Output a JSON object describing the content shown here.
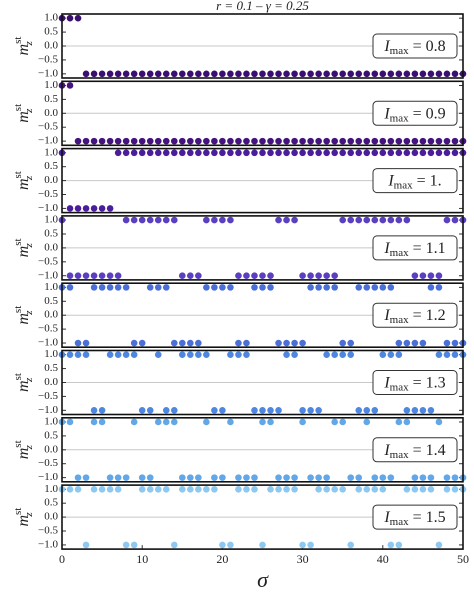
{
  "chart_data": [
    {
      "type": "scatter",
      "title": "r = 0.1  –  γ = 0.25",
      "ylabel": [
        "m",
        "z",
        "st"
      ],
      "annotation": [
        "I",
        "max",
        " = 0.8"
      ],
      "color": "#3b0f6f",
      "xlim": [
        0,
        50
      ],
      "ylim": [
        -1.15,
        1.15
      ],
      "gridlines": [
        0
      ],
      "yticks": [
        {
          "value": 1,
          "label": "1.0"
        },
        0.5,
        {
          "value": 0,
          "label": "0.0"
        },
        {
          "value": -0.5,
          "label": "−0.5"
        },
        {
          "value": -1,
          "label": "−1.0"
        }
      ],
      "x": [
        0,
        1,
        2,
        3,
        4,
        5,
        6,
        7,
        8,
        9,
        10,
        11,
        12,
        13,
        14,
        15,
        16,
        17,
        18,
        19,
        20,
        21,
        22,
        23,
        24,
        25,
        26,
        27,
        28,
        29,
        30,
        31,
        32,
        33,
        34,
        35,
        36,
        37,
        38,
        39,
        40,
        41,
        42,
        43,
        44,
        45,
        46,
        47,
        48,
        49,
        50
      ],
      "values": [
        1,
        1,
        1,
        -1,
        -1,
        -1,
        -1,
        -1,
        -1,
        -1,
        -1,
        -1,
        -1,
        -1,
        -1,
        -1,
        -1,
        -1,
        -1,
        -1,
        -1,
        -1,
        -1,
        -1,
        -1,
        -1,
        -1,
        -1,
        -1,
        -1,
        -1,
        -1,
        -1,
        -1,
        -1,
        -1,
        -1,
        -1,
        -1,
        -1,
        -1,
        -1,
        -1,
        -1,
        -1,
        -1,
        -1,
        -1,
        -1,
        -1,
        -1
      ]
    },
    {
      "type": "scatter",
      "ylabel": [
        "m",
        "z",
        "st"
      ],
      "annotation": [
        "I",
        "max",
        " = 0.9"
      ],
      "color": "#45137f",
      "xlim": [
        0,
        50
      ],
      "ylim": [
        -1.15,
        1.15
      ],
      "gridlines": [
        0
      ],
      "yticks": [
        {
          "value": 1,
          "label": "1.0"
        },
        0.5,
        {
          "value": 0,
          "label": "0.0"
        },
        {
          "value": -0.5,
          "label": "−0.5"
        },
        {
          "value": -1,
          "label": "−1.0"
        }
      ],
      "x": [
        0,
        1,
        2,
        3,
        4,
        5,
        6,
        7,
        8,
        9,
        10,
        11,
        12,
        13,
        14,
        15,
        16,
        17,
        18,
        19,
        20,
        21,
        22,
        23,
        24,
        25,
        26,
        27,
        28,
        29,
        30,
        31,
        32,
        33,
        34,
        35,
        36,
        37,
        38,
        39,
        40,
        41,
        42,
        43,
        44,
        45,
        46,
        47,
        48,
        49,
        50
      ],
      "values": [
        1,
        1,
        -1,
        -1,
        -1,
        -1,
        -1,
        -1,
        -1,
        -1,
        -1,
        -1,
        -1,
        -1,
        -1,
        -1,
        -1,
        -1,
        -1,
        -1,
        -1,
        -1,
        -1,
        -1,
        -1,
        -1,
        -1,
        -1,
        -1,
        -1,
        -1,
        -1,
        -1,
        -1,
        -1,
        -1,
        -1,
        -1,
        -1,
        -1,
        -1,
        -1,
        -1,
        -1,
        -1,
        -1,
        -1,
        -1,
        -1,
        -1,
        -1
      ]
    },
    {
      "type": "scatter",
      "ylabel": [
        "m",
        "z",
        "st"
      ],
      "annotation": [
        "I",
        "max",
        " = 1."
      ],
      "color": "#4c1d9a",
      "xlim": [
        0,
        50
      ],
      "ylim": [
        -1.15,
        1.15
      ],
      "gridlines": [
        0
      ],
      "yticks": [
        {
          "value": 1,
          "label": "1.0"
        },
        0.5,
        {
          "value": 0,
          "label": "0.0"
        },
        {
          "value": -0.5,
          "label": "−0.5"
        },
        {
          "value": -1,
          "label": "−1.0"
        }
      ],
      "x": [
        0,
        1,
        2,
        3,
        4,
        5,
        6,
        7,
        8,
        9,
        10,
        11,
        12,
        13,
        14,
        15,
        16,
        17,
        18,
        19,
        20,
        21,
        22,
        23,
        24,
        25,
        26,
        27,
        28,
        29,
        30,
        31,
        32,
        33,
        34,
        35,
        36,
        37,
        38,
        39,
        40,
        41,
        42,
        43,
        44,
        45,
        46,
        47,
        48,
        49,
        50
      ],
      "values": [
        1,
        -1,
        -1,
        -1,
        -1,
        -1,
        -1,
        1,
        1,
        1,
        1,
        1,
        1,
        1,
        1,
        1,
        1,
        1,
        1,
        1,
        1,
        1,
        1,
        1,
        1,
        1,
        1,
        1,
        1,
        1,
        1,
        1,
        1,
        1,
        1,
        1,
        1,
        1,
        1,
        1,
        1,
        1,
        1,
        1,
        1,
        1,
        1,
        1,
        1,
        1,
        1
      ]
    },
    {
      "type": "scatter",
      "ylabel": [
        "m",
        "z",
        "st"
      ],
      "annotation": [
        "I",
        "max",
        " = 1.1"
      ],
      "color": "#5a3fc0",
      "xlim": [
        0,
        50
      ],
      "ylim": [
        -1.15,
        1.15
      ],
      "gridlines": [
        0
      ],
      "yticks": [
        {
          "value": 1,
          "label": "1.0"
        },
        0.5,
        {
          "value": 0,
          "label": "0.0"
        },
        {
          "value": -0.5,
          "label": "−0.5"
        },
        {
          "value": -1,
          "label": "−1.0"
        }
      ],
      "x": [
        0,
        1,
        2,
        3,
        4,
        5,
        6,
        7,
        8,
        9,
        10,
        11,
        12,
        13,
        14,
        15,
        16,
        17,
        18,
        19,
        20,
        21,
        22,
        23,
        24,
        25,
        26,
        27,
        28,
        29,
        30,
        31,
        32,
        33,
        34,
        35,
        36,
        37,
        38,
        39,
        40,
        41,
        42,
        43,
        44,
        45,
        46,
        47,
        48,
        49,
        50
      ],
      "values": [
        1,
        -1,
        -1,
        -1,
        -1,
        -1,
        -1,
        -1,
        1,
        1,
        1,
        1,
        1,
        1,
        1,
        -1,
        -1,
        -1,
        1,
        1,
        1,
        1,
        -1,
        -1,
        -1,
        -1,
        -1,
        1,
        1,
        1,
        -1,
        -1,
        -1,
        -1,
        -1,
        1,
        1,
        1,
        1,
        1,
        1,
        1,
        1,
        1,
        -1,
        -1,
        -1,
        -1,
        1,
        1,
        1
      ]
    },
    {
      "type": "scatter",
      "ylabel": [
        "m",
        "z",
        "st"
      ],
      "annotation": [
        "I",
        "max",
        " = 1.2"
      ],
      "color": "#4a6fd6",
      "xlim": [
        0,
        50
      ],
      "ylim": [
        -1.15,
        1.15
      ],
      "gridlines": [
        0
      ],
      "yticks": [
        {
          "value": 1,
          "label": "1.0"
        },
        0.5,
        {
          "value": 0,
          "label": "0.0"
        },
        {
          "value": -0.5,
          "label": "−0.5"
        },
        {
          "value": -1,
          "label": "−1.0"
        }
      ],
      "x": [
        0,
        1,
        2,
        3,
        4,
        5,
        6,
        7,
        8,
        9,
        10,
        11,
        12,
        13,
        14,
        15,
        16,
        17,
        18,
        19,
        20,
        21,
        22,
        23,
        24,
        25,
        26,
        27,
        28,
        29,
        30,
        31,
        32,
        33,
        34,
        35,
        36,
        37,
        38,
        39,
        40,
        41,
        42,
        43,
        44,
        45,
        46,
        47,
        48,
        49,
        50
      ],
      "values": [
        1,
        1,
        -1,
        -1,
        1,
        1,
        1,
        1,
        1,
        -1,
        -1,
        1,
        1,
        1,
        -1,
        -1,
        -1,
        -1,
        1,
        1,
        1,
        1,
        -1,
        -1,
        1,
        1,
        1,
        -1,
        -1,
        -1,
        -1,
        1,
        1,
        1,
        1,
        -1,
        -1,
        1,
        1,
        1,
        1,
        1,
        -1,
        -1,
        -1,
        -1,
        1,
        1,
        -1,
        -1,
        -1
      ]
    },
    {
      "type": "scatter",
      "ylabel": [
        "m",
        "z",
        "st"
      ],
      "annotation": [
        "I",
        "max",
        " = 1.3"
      ],
      "color": "#4f86df",
      "xlim": [
        0,
        50
      ],
      "ylim": [
        -1.15,
        1.15
      ],
      "gridlines": [
        0
      ],
      "yticks": [
        {
          "value": 1,
          "label": "1.0"
        },
        0.5,
        {
          "value": 0,
          "label": "0.0"
        },
        {
          "value": -0.5,
          "label": "−0.5"
        },
        {
          "value": -1,
          "label": "−1.0"
        }
      ],
      "x": [
        0,
        1,
        2,
        3,
        4,
        5,
        6,
        7,
        8,
        9,
        10,
        11,
        12,
        13,
        14,
        15,
        16,
        17,
        18,
        19,
        20,
        21,
        22,
        23,
        24,
        25,
        26,
        27,
        28,
        29,
        30,
        31,
        32,
        33,
        34,
        35,
        36,
        37,
        38,
        39,
        40,
        41,
        42,
        43,
        44,
        45,
        46,
        47,
        48,
        49,
        50
      ],
      "values": [
        1,
        1,
        1,
        1,
        -1,
        -1,
        1,
        1,
        1,
        1,
        -1,
        -1,
        1,
        -1,
        -1,
        1,
        1,
        1,
        1,
        -1,
        -1,
        1,
        1,
        1,
        -1,
        -1,
        -1,
        -1,
        1,
        1,
        -1,
        -1,
        -1,
        1,
        1,
        1,
        1,
        -1,
        -1,
        -1,
        1,
        1,
        1,
        -1,
        -1,
        -1,
        -1,
        1,
        1,
        1,
        1
      ]
    },
    {
      "type": "scatter",
      "ylabel": [
        "m",
        "z",
        "st"
      ],
      "annotation": [
        "I",
        "max",
        " = 1.4"
      ],
      "color": "#62a8e8",
      "xlim": [
        0,
        50
      ],
      "ylim": [
        -1.15,
        1.15
      ],
      "gridlines": [
        0
      ],
      "yticks": [
        {
          "value": 1,
          "label": "1.0"
        },
        0.5,
        {
          "value": 0,
          "label": "0.0"
        },
        {
          "value": -0.5,
          "label": "−0.5"
        },
        {
          "value": -1,
          "label": "−1.0"
        }
      ],
      "x": [
        0,
        1,
        2,
        3,
        4,
        5,
        6,
        7,
        8,
        9,
        10,
        11,
        12,
        13,
        14,
        15,
        16,
        17,
        18,
        19,
        20,
        21,
        22,
        23,
        24,
        25,
        26,
        27,
        28,
        29,
        30,
        31,
        32,
        33,
        34,
        35,
        36,
        37,
        38,
        39,
        40,
        41,
        42,
        43,
        44,
        45,
        46,
        47,
        48,
        49,
        50
      ],
      "values": [
        1,
        1,
        -1,
        -1,
        1,
        1,
        -1,
        -1,
        -1,
        1,
        -1,
        -1,
        1,
        1,
        1,
        -1,
        -1,
        -1,
        1,
        -1,
        -1,
        1,
        -1,
        -1,
        -1,
        1,
        1,
        -1,
        -1,
        -1,
        1,
        -1,
        -1,
        -1,
        1,
        1,
        -1,
        -1,
        1,
        -1,
        -1,
        -1,
        1,
        1,
        -1,
        -1,
        -1,
        1,
        -1,
        -1,
        -1
      ]
    },
    {
      "type": "scatter",
      "ylabel": [
        "m",
        "z",
        "st"
      ],
      "annotation": [
        "I",
        "max",
        " = 1.5"
      ],
      "color": "#8cc8f0",
      "xlim": [
        0,
        50
      ],
      "ylim": [
        -1.15,
        1.15
      ],
      "gridlines": [
        0
      ],
      "xlabel": "σ",
      "yticks": [
        {
          "value": 1,
          "label": "1.0"
        },
        0.5,
        {
          "value": 0,
          "label": "0.0"
        },
        {
          "value": -0.5,
          "label": "−0.5"
        },
        {
          "value": -1,
          "label": "−1.0"
        }
      ],
      "xticks": [
        0,
        10,
        20,
        30,
        40,
        50
      ],
      "x": [
        0,
        1,
        2,
        3,
        4,
        5,
        6,
        7,
        8,
        9,
        10,
        11,
        12,
        13,
        14,
        15,
        16,
        17,
        18,
        19,
        20,
        21,
        22,
        23,
        24,
        25,
        26,
        27,
        28,
        29,
        30,
        31,
        32,
        33,
        34,
        35,
        36,
        37,
        38,
        39,
        40,
        41,
        42,
        43,
        44,
        45,
        46,
        47,
        48,
        49,
        50
      ],
      "values": [
        1,
        1,
        1,
        -1,
        1,
        1,
        1,
        1,
        -1,
        -1,
        1,
        1,
        1,
        1,
        -1,
        1,
        1,
        1,
        1,
        1,
        -1,
        -1,
        1,
        1,
        1,
        -1,
        1,
        1,
        1,
        1,
        -1,
        -1,
        1,
        1,
        1,
        1,
        -1,
        1,
        1,
        1,
        1,
        -1,
        -1,
        1,
        1,
        1,
        1,
        -1,
        1,
        1,
        1
      ]
    }
  ]
}
